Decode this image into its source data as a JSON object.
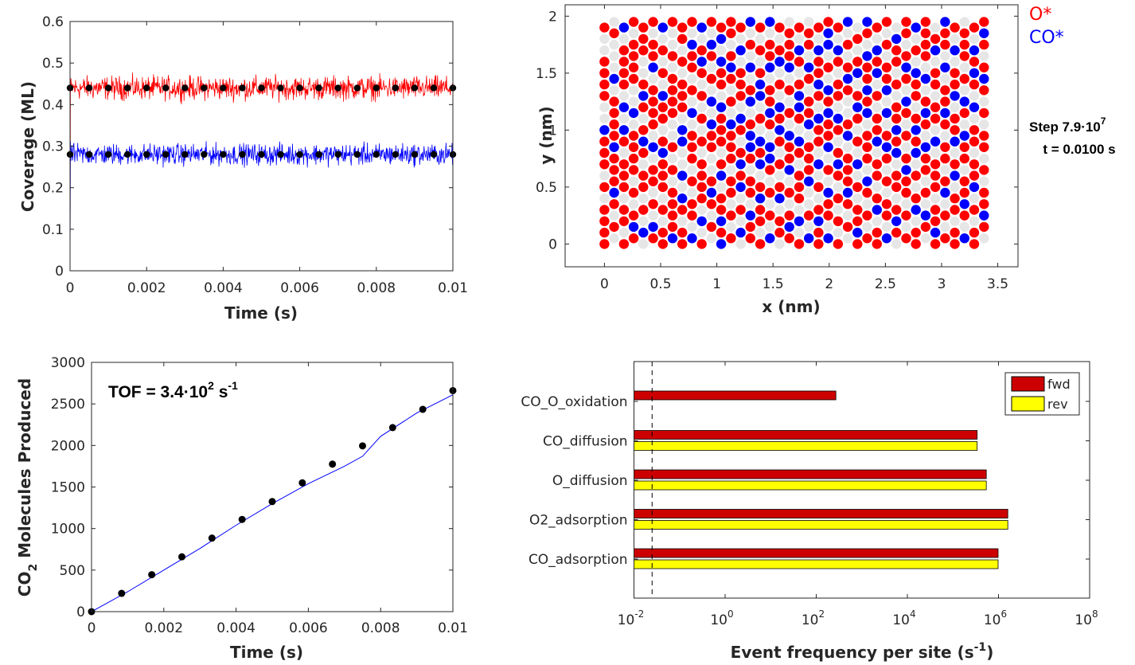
{
  "chart_data": [
    {
      "id": "coverage",
      "type": "line",
      "title": "",
      "xlabel": "Time (s)",
      "ylabel": "Coverage (ML)",
      "xlim": [
        0,
        0.01
      ],
      "ylim": [
        0,
        0.6
      ],
      "xticks": [
        "0",
        "0.002",
        "0.004",
        "0.006",
        "0.008",
        "0.01"
      ],
      "xtick_values": [
        0,
        0.002,
        0.004,
        0.006,
        0.008,
        0.01
      ],
      "yticks": [
        "0",
        "0.1",
        "0.2",
        "0.3",
        "0.4",
        "0.5",
        "0.6"
      ],
      "ytick_values": [
        0,
        0.1,
        0.2,
        0.3,
        0.4,
        0.5,
        0.6
      ],
      "series": [
        {
          "name": "O*",
          "color": "#ff0000",
          "mean": 0.44,
          "noise_range": [
            0.38,
            0.49
          ],
          "initial": 0.0
        },
        {
          "name": "CO*",
          "color": "#0000ff",
          "mean": 0.28,
          "noise_range": [
            0.23,
            0.33
          ],
          "initial": 0.0
        }
      ],
      "markers": {
        "color": "#000000",
        "x": [
          0,
          0.0005,
          0.001,
          0.0015,
          0.002,
          0.0025,
          0.003,
          0.0035,
          0.004,
          0.0045,
          0.005,
          0.0055,
          0.006,
          0.0065,
          0.007,
          0.0075,
          0.008,
          0.0085,
          0.009,
          0.0095,
          0.01
        ],
        "series_values": [
          0.44,
          0.28
        ]
      }
    },
    {
      "id": "lattice",
      "type": "scatter",
      "xlabel": "x (nm)",
      "ylabel": "y (nm)",
      "xlim": [
        -0.35,
        3.68
      ],
      "ylim": [
        -0.2,
        2.1
      ],
      "xticks": [
        "0",
        "0.5",
        "1",
        "1.5",
        "2",
        "2.5",
        "3",
        "3.5"
      ],
      "xtick_values": [
        0,
        0.5,
        1,
        1.5,
        2,
        2.5,
        3,
        3.5
      ],
      "yticks": [
        "0",
        "0.5",
        "1",
        "1.5",
        "2"
      ],
      "ytick_values": [
        0,
        0.5,
        1,
        1.5,
        2
      ],
      "lattice": {
        "columns": 40,
        "rows": 20,
        "dx_nm": 0.0866,
        "dy_nm": 0.1,
        "odd_column_offset_nm": 0.05
      },
      "species_colors": {
        "O": "#ff0000",
        "C": "#0000ff",
        ".": "#e6e6e6"
      },
      "legend": [
        {
          "label": "O*",
          "color": "#ff0000"
        },
        {
          "label": "CO*",
          "color": "#0000ff"
        }
      ],
      "columns_bottom_to_top": [
        "OOOO.O.OOOC..OOOO..O",
        ".O.OCOOOCOOOO.C...O.",
        "O.OO.OOO.OC.C.OOOO.C",
        "OCO.O.OOOO.C..OOOO.O",
        ".C.O.OO.OCO.OCO..OOO",
        "OC.O.OO.C.OOOO.COO.O",
        "OO.O.OOOCO.OOC.O.O.C",
        "COOOO.O.O..OOOO.O..O",
        "OO.OC.C..CC.OOO.O.OO",
        "C.OO.O.OOO.C.O.OOC.O",
        "O.C.OOOO.O.O.O.OCO.C",
        ".O.OCO..OOC.C.O.OC.O",
        "COCOO.CO.OOOC.OOC.CO",
        "O.O.OO.OOOC.O.OCO.OO",
        ".C.O.COCO.OC.OOO.C.O",
        "OOC.OO.OCCO.CO.C.O.C",
        "O.OOCO.COC.O.CCO.O.O",
        "C.O.O.OCC.OCOO.COO.C",
        ".OO.CO.O.OCOC.O.CO.O",
        "OCO.O.COOC.O.O.COOO.",
        "O.C.OOO.OC.OCCO.OC.O",
        "C.O..COOO.COO.OC.OO.",
        "OOCO.O.C.OOC.OCOOC.O",
        "C.OOC.O.COOCOC.O.CCO",
        "O.O.O.OCO.OC.OO.OC.O",
        ".O.OCOOO.CO..OCO.O.C",
        "OCOO.O.C.O.OCO.CO.O.",
        "O.O.OC.OOO.COCOOC.OC",
        "OO.CO.OO.COO.O.COC.O",
        "C.OO.O.OCO.C.COO.O.O",
        ".OCO.OO.COCOO.O.OOC.",
        "O.O.OOCO.O.OC.OCO.OO",
        "OO.CO.O.COCO.OOC.O.C",
        ".OC.O.OOC.OCO.C.OOOO",
        "OCOO.OOO.C.OO.OO.CO.",
        "O.O.CO.OO.OCOO.C.OOC",
        "OO.OO.CO.COO.COO.C.O",
        "C.OCOO.OOC.OC.O.OOO.",
        "OO.O.COO.OO.C.OCOC.O",
        ".OCOO.O.OO.O.OCO.OCO"
      ],
      "annotations": [
        "Step 7.9·10^7",
        "t = 0.0100 s"
      ]
    },
    {
      "id": "co2",
      "type": "line",
      "xlabel": "Time (s)",
      "ylabel": "CO2 Molecules Produced",
      "xlim": [
        0,
        0.01
      ],
      "ylim": [
        0,
        3000
      ],
      "xticks": [
        "0",
        "0.002",
        "0.004",
        "0.006",
        "0.008",
        "0.01"
      ],
      "xtick_values": [
        0,
        0.002,
        0.004,
        0.006,
        0.008,
        0.01
      ],
      "yticks": [
        "0",
        "500",
        "1000",
        "1500",
        "2000",
        "2500",
        "3000"
      ],
      "ytick_values": [
        0,
        500,
        1000,
        1500,
        2000,
        2500,
        3000
      ],
      "line": {
        "color": "#0000ff",
        "x": [
          0,
          0.001,
          0.002,
          0.003,
          0.004,
          0.005,
          0.006,
          0.007,
          0.0075,
          0.008,
          0.009,
          0.01
        ],
        "y": [
          0,
          240,
          500,
          760,
          1040,
          1300,
          1540,
          1750,
          1870,
          2110,
          2390,
          2610
        ]
      },
      "markers": {
        "color": "#000000",
        "x": [
          0,
          0.000833,
          0.001667,
          0.0025,
          0.003333,
          0.004167,
          0.005,
          0.005833,
          0.006667,
          0.0075,
          0.008333,
          0.009167,
          0.01
        ],
        "y": [
          0,
          220,
          445,
          660,
          885,
          1110,
          1325,
          1550,
          1775,
          1995,
          2215,
          2435,
          2660
        ]
      },
      "annotation": {
        "text": "TOF = 3.4·10",
        "sup1": "2",
        "unit": " s",
        "sup2": "-1"
      }
    },
    {
      "id": "events",
      "type": "bar",
      "orientation": "horizontal",
      "xscale": "log",
      "xlabel": "Event frequency per site (s-1)",
      "xlabel_main": "Event frequency per site (s",
      "xlabel_sup": "-1",
      "xlabel_close": ")",
      "xlim": [
        0.01,
        100000000
      ],
      "xticks": [
        {
          "base": "10",
          "exp": "-2",
          "value": -2
        },
        {
          "base": "10",
          "exp": "0",
          "value": 0
        },
        {
          "base": "10",
          "exp": "2",
          "value": 2
        },
        {
          "base": "10",
          "exp": "4",
          "value": 4
        },
        {
          "base": "10",
          "exp": "6",
          "value": 6
        },
        {
          "base": "10",
          "exp": "8",
          "value": 8
        }
      ],
      "categories": [
        "CO_O_oxidation",
        "CO_diffusion",
        "O_diffusion",
        "O2_adsorption",
        "CO_adsorption"
      ],
      "series": [
        {
          "name": "fwd",
          "color": "#cc0000",
          "values": [
            270,
            340000,
            540000,
            1600000,
            980000
          ]
        },
        {
          "name": "rev",
          "color": "#ffff00",
          "values": [
            null,
            340000,
            540000,
            1600000,
            980000
          ]
        }
      ],
      "reference_line": {
        "value": 0.025,
        "style": "dashed"
      },
      "legend": "top-right"
    }
  ]
}
